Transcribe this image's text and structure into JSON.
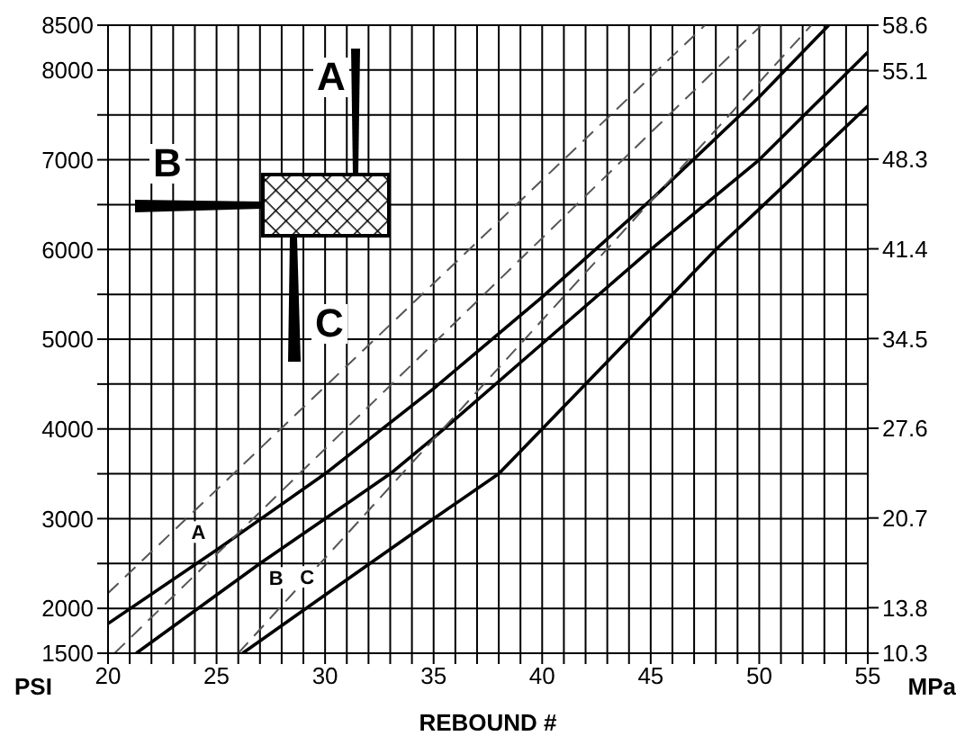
{
  "chart_data": {
    "type": "line",
    "xlabel": "REBOUND #",
    "ylabel": "PSI",
    "y2label": "MPa",
    "annotations": [
      "A",
      "B",
      "C"
    ],
    "xlim": [
      20,
      55
    ],
    "xticks": [
      20,
      {
        "value": 21,
        "label": null
      },
      {
        "value": 22,
        "label": null
      },
      {
        "value": 23,
        "label": null
      },
      {
        "value": 24,
        "label": null
      },
      25,
      {
        "value": 26,
        "label": null
      },
      {
        "value": 27,
        "label": null
      },
      {
        "value": 28,
        "label": null
      },
      {
        "value": 29,
        "label": null
      },
      30,
      {
        "value": 31,
        "label": null
      },
      {
        "value": 32,
        "label": null
      },
      {
        "value": 33,
        "label": null
      },
      {
        "value": 34,
        "label": null
      },
      35,
      {
        "value": 36,
        "label": null
      },
      {
        "value": 37,
        "label": null
      },
      {
        "value": 38,
        "label": null
      },
      {
        "value": 39,
        "label": null
      },
      40,
      {
        "value": 41,
        "label": null
      },
      {
        "value": 42,
        "label": null
      },
      {
        "value": 43,
        "label": null
      },
      {
        "value": 44,
        "label": null
      },
      45,
      {
        "value": 46,
        "label": null
      },
      {
        "value": 47,
        "label": null
      },
      {
        "value": 48,
        "label": null
      },
      {
        "value": 49,
        "label": null
      },
      50,
      {
        "value": 51,
        "label": null
      },
      {
        "value": 52,
        "label": null
      },
      {
        "value": 53,
        "label": null
      },
      {
        "value": 54,
        "label": null
      },
      55
    ],
    "ylim": [
      1500,
      8500
    ],
    "yticks": [
      1500,
      2000,
      {
        "value": 2500,
        "label": null
      },
      3000,
      {
        "value": 3500,
        "label": null
      },
      4000,
      {
        "value": 4500,
        "label": null
      },
      5000,
      {
        "value": 5500,
        "label": null
      },
      6000,
      {
        "value": 6500,
        "label": null
      },
      7000,
      {
        "value": 7500,
        "label": null
      },
      8000,
      8500
    ],
    "y2lim": [
      10.3,
      58.6
    ],
    "y2ticks": [
      10.3,
      13.8,
      20.7,
      27.6,
      34.5,
      41.4,
      48.3,
      55.1,
      58.6
    ],
    "grid": true,
    "legend": false,
    "marker": "none",
    "series": [
      {
        "name": "A",
        "color": "#000000",
        "line_style": "solid",
        "x": [
          20,
          25,
          30,
          35,
          40,
          45,
          50,
          53.2
        ],
        "values": [
          1830,
          2650,
          3500,
          4450,
          5470,
          6550,
          7700,
          8500
        ]
      },
      {
        "name": "B",
        "color": "#000000",
        "line_style": "solid",
        "x": [
          21.3,
          25,
          27,
          30,
          33,
          35,
          40,
          45,
          50,
          55
        ],
        "values": [
          1500,
          2150,
          2500,
          3000,
          3500,
          3900,
          4950,
          6000,
          7000,
          8200
        ]
      },
      {
        "name": "C",
        "color": "#000000",
        "line_style": "solid",
        "x": [
          26.2,
          30,
          35,
          38,
          40,
          44,
          48,
          50,
          55
        ],
        "values": [
          1500,
          2150,
          3000,
          3500,
          4000,
          5000,
          6000,
          6450,
          7600
        ]
      },
      {
        "color": "#555555",
        "line_style": "dashed",
        "x": [
          20,
          47.5
        ],
        "values": [
          2170,
          8500
        ]
      },
      {
        "color": "#555555",
        "line_style": "dashed",
        "x": [
          20.3,
          50.1
        ],
        "values": [
          1500,
          8500
        ]
      },
      {
        "color": "#555555",
        "line_style": "dashed",
        "x": [
          26,
          52.4
        ],
        "values": [
          1500,
          8500
        ]
      }
    ]
  }
}
